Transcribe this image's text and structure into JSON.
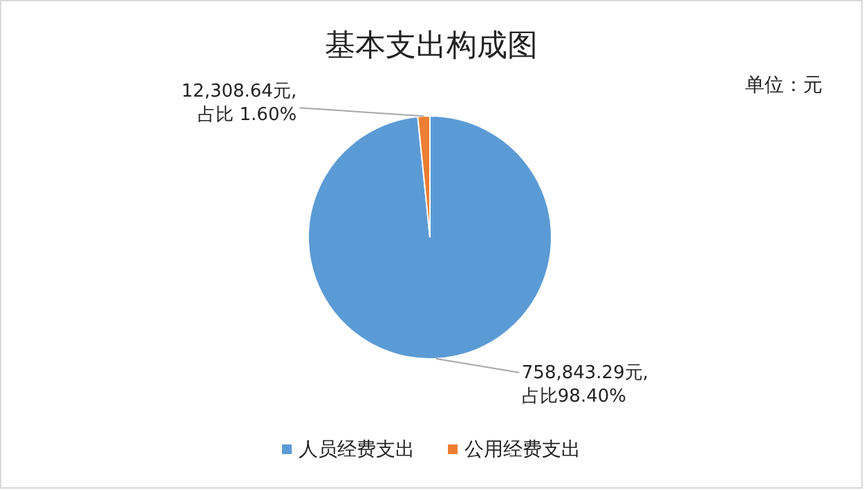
{
  "chart_data": {
    "type": "pie",
    "title": "基本支出构成图",
    "annotations": [
      "单位：元"
    ],
    "categories": [
      "人员经费支出",
      "公用经费支出"
    ],
    "values": [
      758843.29,
      12308.64
    ],
    "colors": [
      "#5b9bd5",
      "#ed7d31"
    ],
    "value_labels": [
      "758,843.29元,\n占比98.40%",
      "12,308.64元,\n占比 1.60%"
    ],
    "legend": "bottom"
  }
}
